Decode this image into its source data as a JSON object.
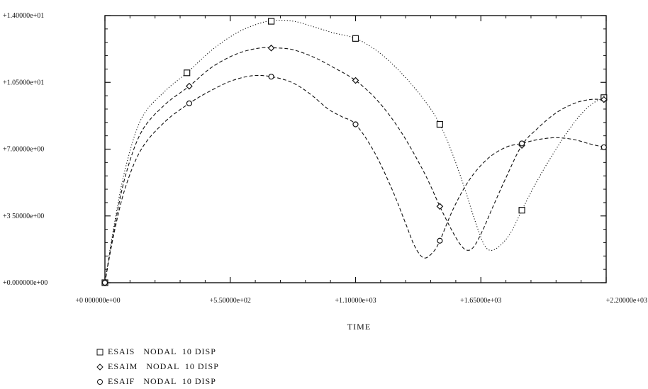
{
  "chart_data": {
    "type": "line",
    "title": "",
    "xlabel": "TIME",
    "ylabel": "",
    "xlim": [
      0,
      2200
    ],
    "ylim": [
      0,
      14
    ],
    "x_ticks": [
      0,
      550,
      1100,
      1650,
      2200
    ],
    "y_ticks": [
      0,
      3.5,
      7,
      10.5,
      14
    ],
    "x_tick_labels": [
      "+0 000000e+00",
      "+5.50000e+02",
      "+1.10000e+03",
      "+1.65000e+03",
      "+2.20000e+03"
    ],
    "y_tick_labels": [
      "+0.000000e+00",
      "+3 50000e+00",
      "+7.00000e+00",
      "+1.05000e+01",
      "+1.40000e+01"
    ],
    "grid": false,
    "legend_position": "bottom-left",
    "series": [
      {
        "name": "ESAIS   NODAL  10 DISP",
        "marker": "square",
        "line_style": "dotted",
        "color": "#111111",
        "markers": [
          [
            0,
            0
          ],
          [
            360,
            11
          ],
          [
            730,
            13.7
          ],
          [
            1100,
            12.8
          ],
          [
            1470,
            8.3
          ],
          [
            1830,
            3.8
          ],
          [
            2190,
            9.7
          ]
        ],
        "x": [
          0,
          40,
          90,
          160,
          260,
          360,
          470,
          580,
          680,
          750,
          830,
          920,
          1000,
          1100,
          1200,
          1300,
          1400,
          1470,
          1530,
          1580,
          1620,
          1660,
          1690,
          1730,
          1780,
          1830,
          1900,
          1980,
          2060,
          2130,
          2190
        ],
        "y": [
          0,
          3,
          6,
          8.6,
          10,
          11,
          12.2,
          13.1,
          13.6,
          13.75,
          13.7,
          13.4,
          13.1,
          12.8,
          12.1,
          11,
          9.6,
          8.3,
          6.6,
          4.9,
          3.4,
          2.1,
          1.7,
          1.9,
          2.6,
          3.8,
          5.4,
          7,
          8.4,
          9.3,
          9.7
        ]
      },
      {
        "name": "ESAIM   NODAL  10 DISP",
        "marker": "diamond",
        "line_style": "dashed",
        "color": "#111111",
        "markers": [
          [
            0,
            0
          ],
          [
            370,
            10.3
          ],
          [
            730,
            12.3
          ],
          [
            1100,
            10.6
          ],
          [
            1470,
            4
          ],
          [
            1830,
            7.2
          ],
          [
            2190,
            9.6
          ]
        ],
        "x": [
          0,
          40,
          90,
          160,
          260,
          370,
          470,
          580,
          680,
          760,
          830,
          920,
          1000,
          1100,
          1200,
          1300,
          1400,
          1470,
          1520,
          1560,
          1590,
          1620,
          1660,
          1700,
          1760,
          1830,
          1900,
          1980,
          2060,
          2130,
          2190
        ],
        "y": [
          0,
          2.8,
          5.6,
          7.9,
          9.3,
          10.3,
          11.3,
          12,
          12.3,
          12.3,
          12.2,
          11.8,
          11.3,
          10.6,
          9.5,
          7.9,
          5.8,
          4,
          2.8,
          2,
          1.7,
          1.9,
          2.8,
          3.9,
          5.5,
          7.2,
          8.1,
          8.9,
          9.4,
          9.6,
          9.6
        ]
      },
      {
        "name": "ESAIF   NODAL  10 DISP",
        "marker": "circle",
        "line_style": "dashed",
        "color": "#111111",
        "markers": [
          [
            0,
            0
          ],
          [
            370,
            9.4
          ],
          [
            730,
            10.8
          ],
          [
            1100,
            8.3
          ],
          [
            1470,
            2.2
          ],
          [
            1830,
            7.3
          ],
          [
            2190,
            7.1
          ]
        ],
        "x": [
          0,
          40,
          90,
          160,
          260,
          370,
          470,
          560,
          650,
          730,
          820,
          900,
          980,
          1040,
          1100,
          1180,
          1260,
          1320,
          1360,
          1400,
          1440,
          1470,
          1530,
          1600,
          1680,
          1760,
          1830,
          1900,
          1980,
          2060,
          2120,
          2190
        ],
        "y": [
          0,
          2.6,
          5,
          7,
          8.4,
          9.4,
          10.1,
          10.6,
          10.85,
          10.8,
          10.5,
          9.9,
          9.1,
          8.7,
          8.3,
          6.9,
          4.9,
          3.1,
          1.9,
          1.3,
          1.6,
          2.2,
          3.9,
          5.4,
          6.5,
          7.1,
          7.3,
          7.5,
          7.6,
          7.5,
          7.3,
          7.1
        ]
      }
    ]
  }
}
